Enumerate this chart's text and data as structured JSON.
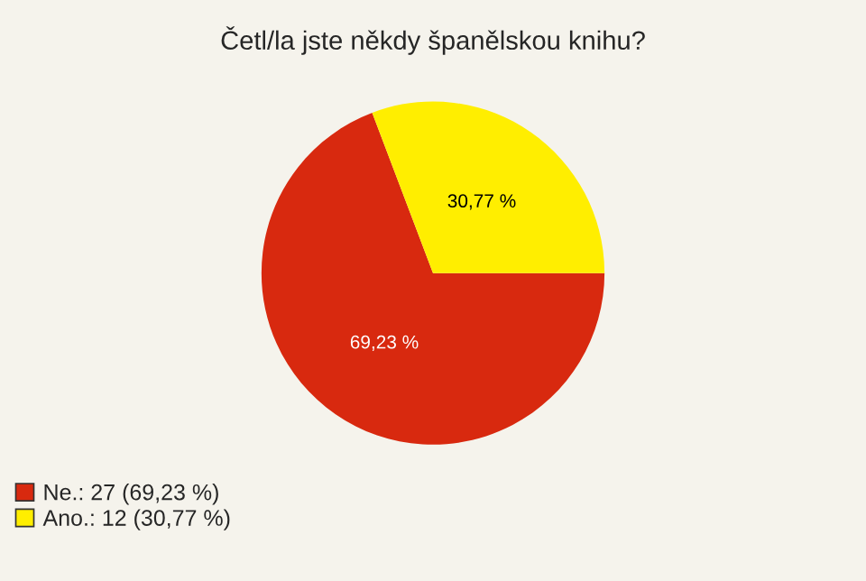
{
  "chart_data": {
    "type": "pie",
    "title": "Četl/la jste někdy španělskou knihu?",
    "categories": [
      "Ne.: 27 (69,23 %)",
      "Ano.: 12 (30,77 %)"
    ],
    "values": [
      69.23,
      30.77
    ],
    "value_labels": [
      "69,23 %",
      "30,77 %"
    ],
    "colors": [
      "#d8290f",
      "#ffee00"
    ],
    "legend": "bottom left"
  }
}
